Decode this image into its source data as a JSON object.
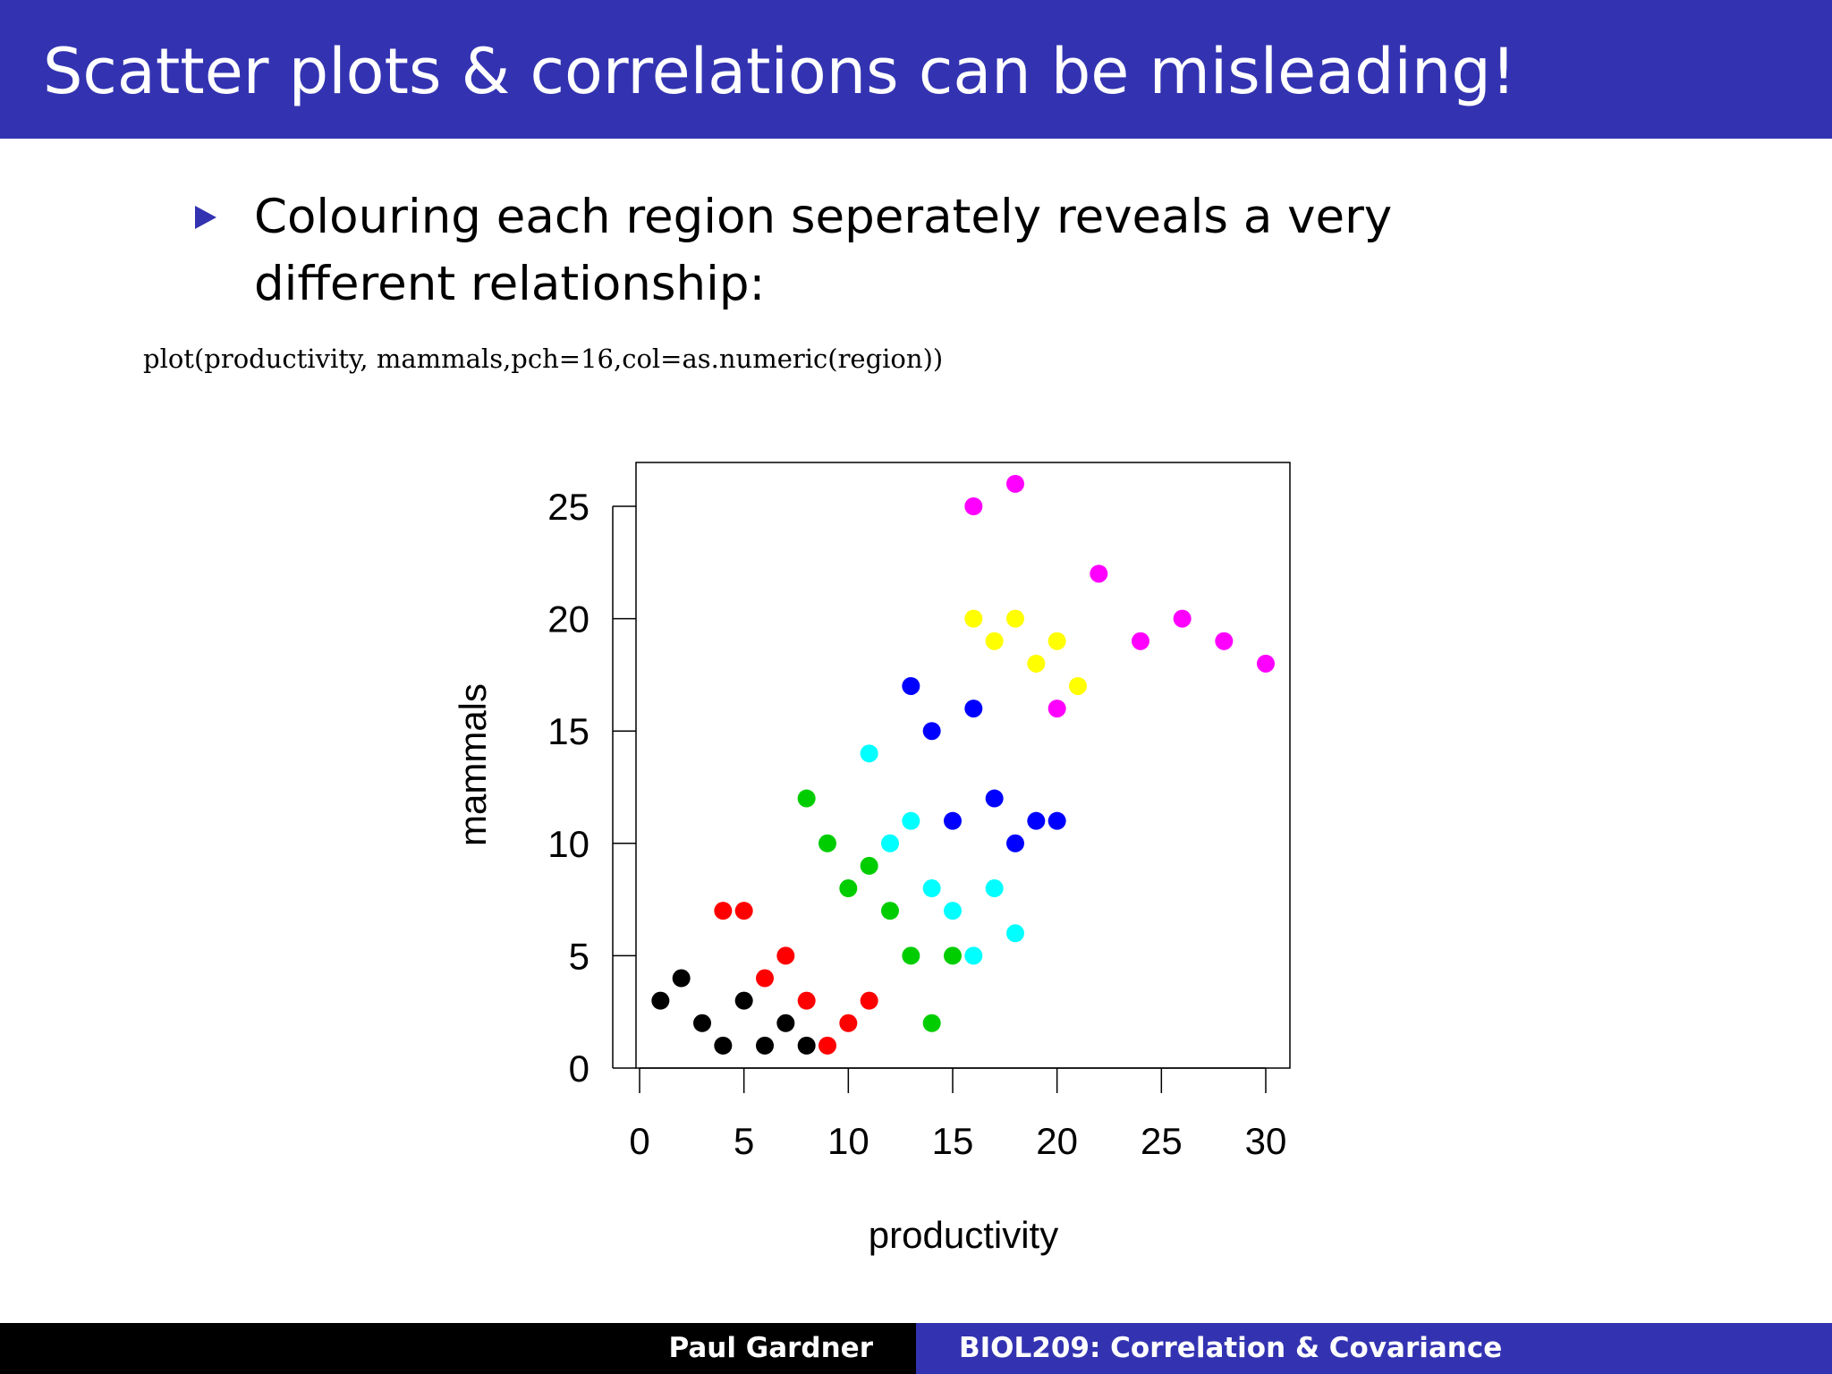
{
  "slide": {
    "title": "Scatter plots & correlations can be misleading!",
    "bullet": "Colouring each region seperately reveals a very different relationship:",
    "code": "plot(productivity, mammals,pch=16,col=as.numeric(region))"
  },
  "footer": {
    "author": "Paul Gardner",
    "course": "BIOL209: Correlation & Covariance"
  },
  "colors": {
    "header_bg": "#3333b2",
    "footer_left_bg": "#000000",
    "footer_right_bg": "#3333b2"
  },
  "chart_data": {
    "type": "scatter",
    "title": "",
    "xlabel": "productivity",
    "ylabel": "mammals",
    "xlim": [
      0,
      30
    ],
    "ylim": [
      0,
      26
    ],
    "xticks": [
      0,
      5,
      10,
      15,
      20,
      25,
      30
    ],
    "yticks": [
      0,
      5,
      10,
      15,
      20,
      25
    ],
    "grid": false,
    "legend": "none",
    "series": [
      {
        "color": "#000000",
        "x": [
          1,
          2,
          3,
          4,
          5,
          6,
          7,
          8
        ],
        "y": [
          3,
          4,
          2,
          1,
          3,
          1,
          2,
          1
        ]
      },
      {
        "color": "#ff0000",
        "x": [
          4,
          5,
          6,
          7,
          8,
          9,
          10,
          11
        ],
        "y": [
          7,
          7,
          4,
          5,
          3,
          1,
          2,
          3
        ]
      },
      {
        "color": "#00cd00",
        "x": [
          8,
          9,
          10,
          11,
          12,
          13,
          14,
          15
        ],
        "y": [
          12,
          10,
          8,
          9,
          7,
          5,
          2,
          5
        ]
      },
      {
        "color": "#0000ff",
        "x": [
          13,
          14,
          15,
          16,
          17,
          18,
          19,
          20
        ],
        "y": [
          17,
          15,
          11,
          16,
          12,
          10,
          11,
          11
        ]
      },
      {
        "color": "#00ffff",
        "x": [
          11,
          12,
          13,
          14,
          15,
          16,
          17,
          18
        ],
        "y": [
          14,
          10,
          11,
          8,
          7,
          5,
          8,
          6
        ]
      },
      {
        "color": "#ff00ff",
        "x": [
          16,
          18,
          20,
          22,
          24,
          26,
          28,
          30
        ],
        "y": [
          25,
          26,
          16,
          22,
          19,
          20,
          19,
          18
        ]
      },
      {
        "color": "#ffff00",
        "x": [
          16,
          17,
          18,
          19,
          20,
          21
        ],
        "y": [
          20,
          19,
          20,
          18,
          19,
          17
        ]
      }
    ]
  }
}
